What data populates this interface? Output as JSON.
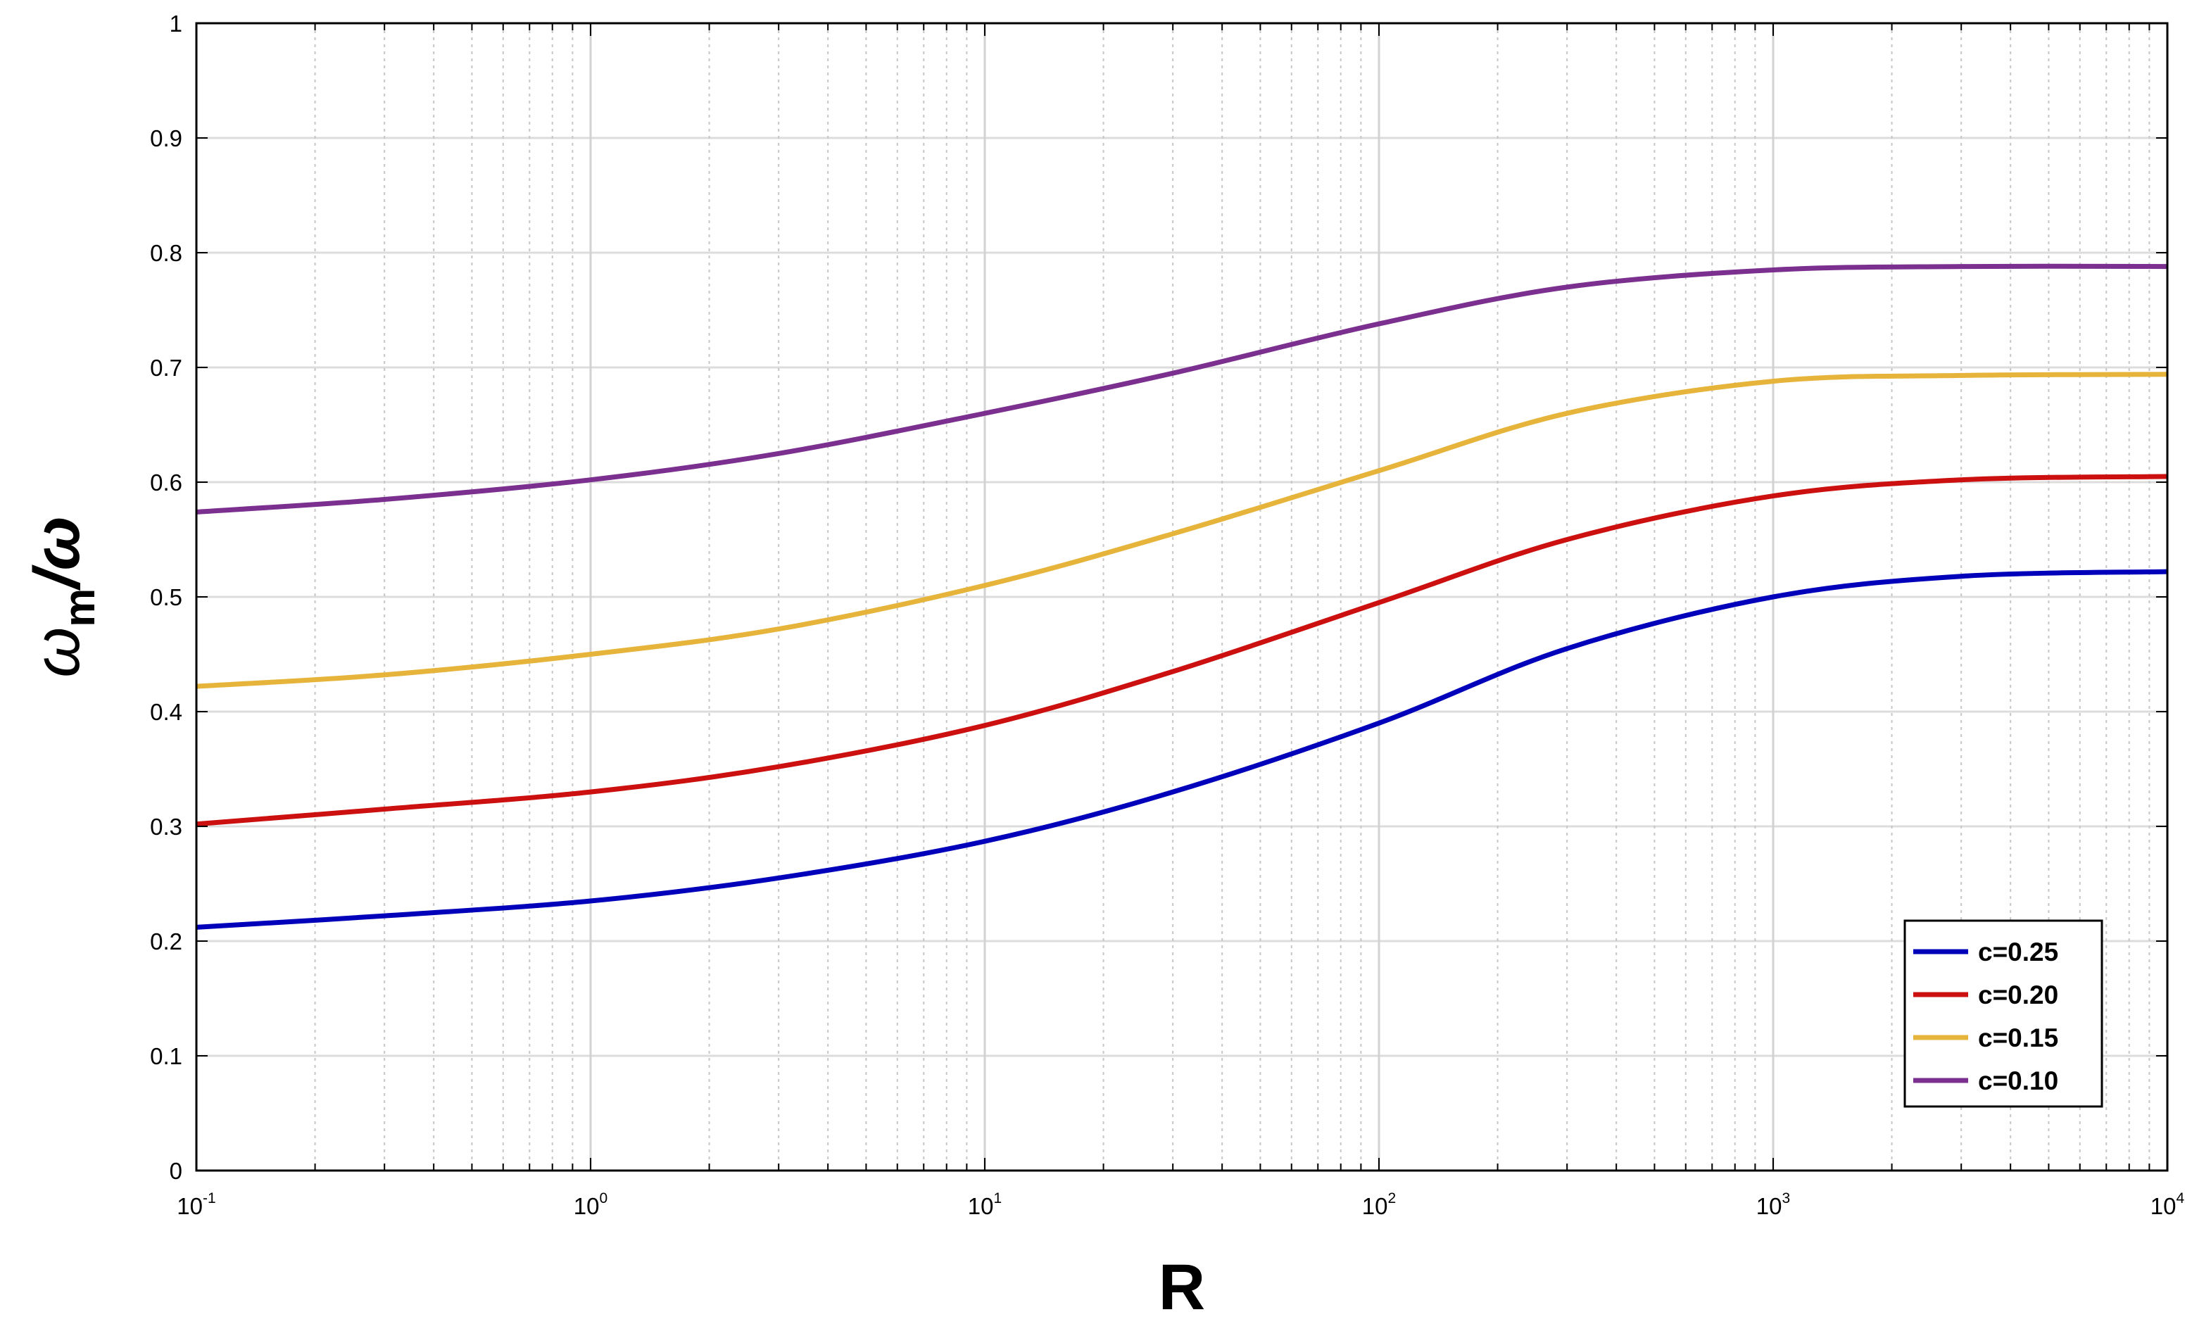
{
  "chart_data": {
    "type": "line",
    "xlabel": "R",
    "ylabel": {
      "symbol": "ω",
      "subscript": "m",
      "tail": "/ω"
    },
    "xscale": "log",
    "xlim": [
      0.1,
      10000
    ],
    "ylim": [
      0,
      1
    ],
    "grid": true,
    "legend_position": "bottom-right",
    "x_ticks": [
      {
        "base": "10",
        "exp": "-1"
      },
      {
        "base": "10",
        "exp": "0"
      },
      {
        "base": "10",
        "exp": "1"
      },
      {
        "base": "10",
        "exp": "2"
      },
      {
        "base": "10",
        "exp": "3"
      },
      {
        "base": "10",
        "exp": "4"
      }
    ],
    "y_ticks": [
      "0",
      "0.1",
      "0.2",
      "0.3",
      "0.4",
      "0.5",
      "0.6",
      "0.7",
      "0.8",
      "0.9",
      "1"
    ],
    "x": [
      0.1,
      0.3,
      1,
      3,
      10,
      30,
      100,
      300,
      1000,
      3000,
      10000
    ],
    "series": [
      {
        "name": "c=0.25",
        "color": "#0000bb",
        "values": [
          0.212,
          0.222,
          0.235,
          0.255,
          0.287,
          0.33,
          0.39,
          0.455,
          0.5,
          0.518,
          0.522
        ]
      },
      {
        "name": "c=0.20",
        "color": "#cc1010",
        "values": [
          0.302,
          0.315,
          0.33,
          0.352,
          0.388,
          0.435,
          0.495,
          0.55,
          0.588,
          0.602,
          0.605
        ]
      },
      {
        "name": "c=0.15",
        "color": "#e6b43a",
        "values": [
          0.422,
          0.432,
          0.45,
          0.472,
          0.51,
          0.555,
          0.61,
          0.66,
          0.688,
          0.693,
          0.694
        ]
      },
      {
        "name": "c=0.10",
        "color": "#7b2f8f",
        "values": [
          0.574,
          0.585,
          0.602,
          0.625,
          0.66,
          0.695,
          0.738,
          0.77,
          0.785,
          0.788,
          0.788
        ]
      }
    ]
  }
}
